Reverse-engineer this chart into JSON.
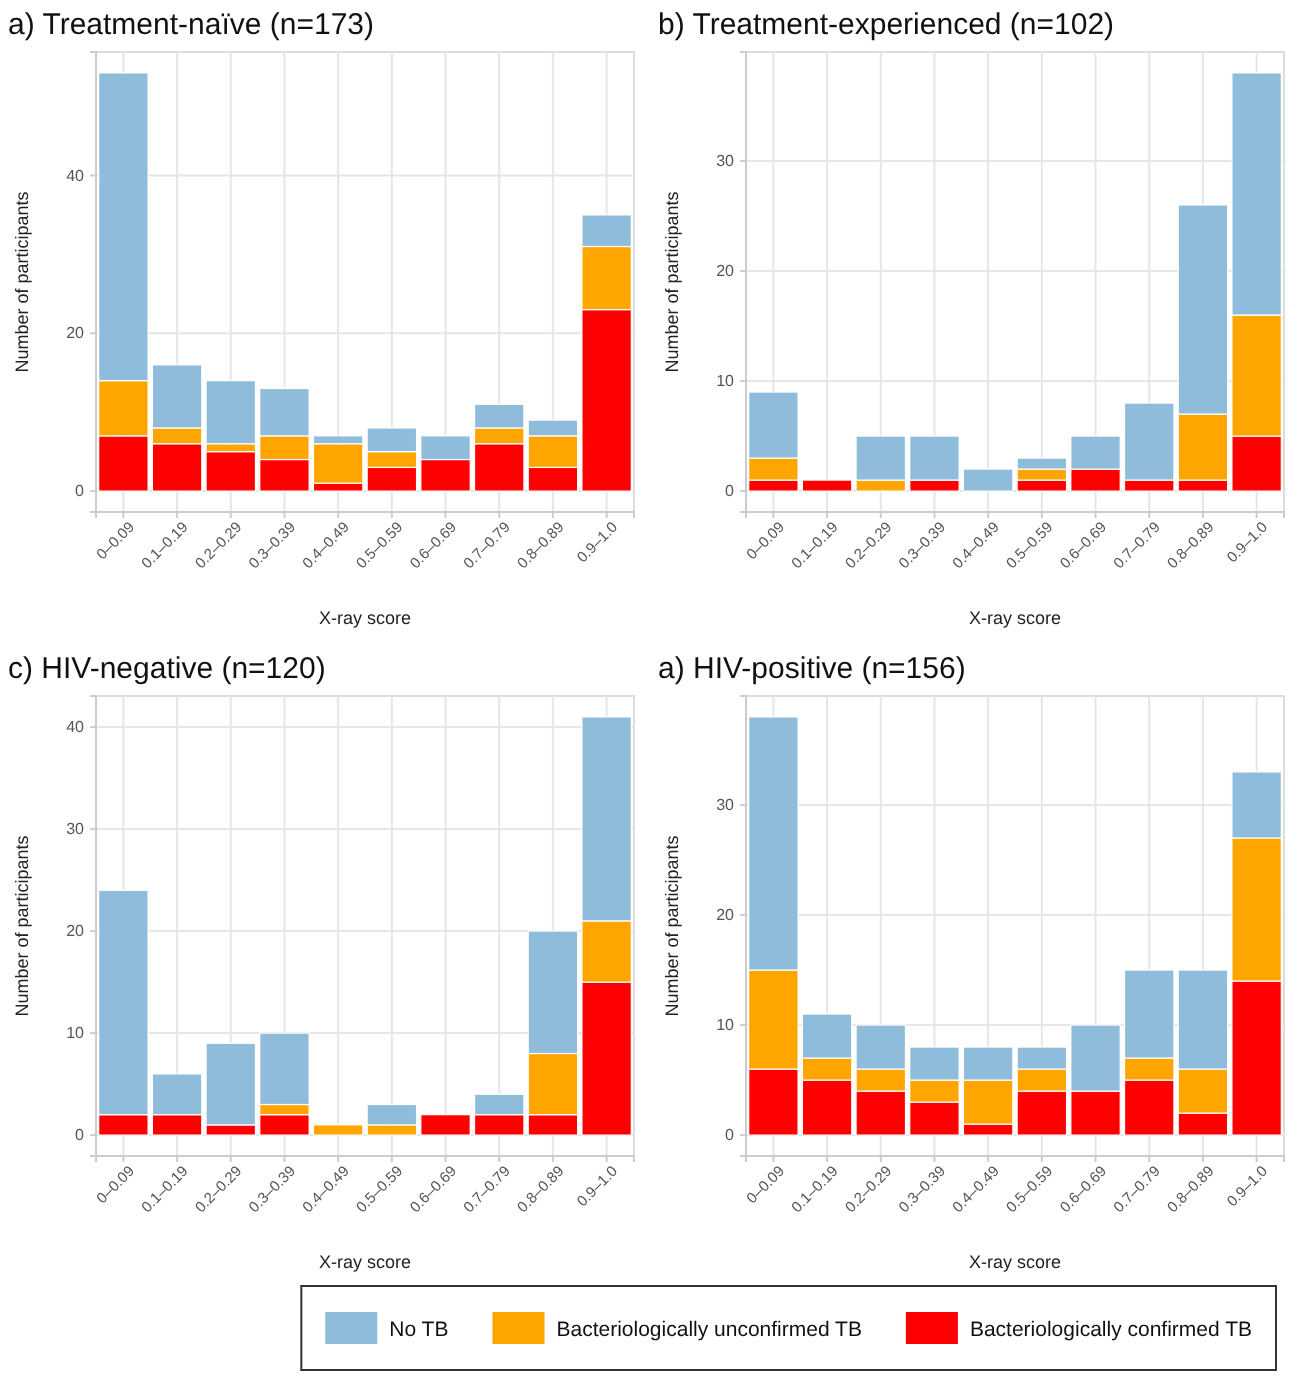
{
  "chart_data": [
    {
      "type": "bar",
      "title": "a) Treatment-naïve (n=173)",
      "xlabel": "X-ray score",
      "ylabel": "Number of participants",
      "stacked": true,
      "grid": true,
      "categories": [
        "0–0.09",
        "0.1–0.19",
        "0.2–0.29",
        "0.3–0.39",
        "0.4–0.49",
        "0.5–0.59",
        "0.6–0.69",
        "0.7–0.79",
        "0.8–0.89",
        "0.9–1.0"
      ],
      "ylim": [
        -2.65,
        55.65
      ],
      "yticks": [
        0,
        20,
        40
      ],
      "series": [
        {
          "color": "#ff0000",
          "values": [
            7,
            6,
            5,
            4,
            1,
            3,
            4,
            6,
            3,
            23
          ]
        },
        {
          "color": "#ffa500",
          "values": [
            7,
            2,
            1,
            3,
            5,
            2,
            0,
            2,
            4,
            8
          ]
        },
        {
          "color": "#8fbcdb",
          "values": [
            39,
            8,
            8,
            6,
            1,
            3,
            3,
            3,
            2,
            4
          ]
        }
      ]
    },
    {
      "type": "bar",
      "title": "b) Treatment-experienced (n=102)",
      "xlabel": "X-ray score",
      "ylabel": "Number of participants",
      "stacked": true,
      "grid": true,
      "categories": [
        "0–0.09",
        "0.1–0.19",
        "0.2–0.29",
        "0.3–0.39",
        "0.4–0.49",
        "0.5–0.59",
        "0.6–0.69",
        "0.7–0.79",
        "0.8–0.89",
        "0.9–1.0"
      ],
      "ylim": [
        -1.9,
        39.9
      ],
      "yticks": [
        0,
        10,
        20,
        30
      ],
      "series": [
        {
          "color": "#ff0000",
          "values": [
            1,
            1,
            0,
            1,
            0,
            1,
            2,
            1,
            1,
            5
          ]
        },
        {
          "color": "#ffa500",
          "values": [
            2,
            0,
            1,
            0,
            0,
            1,
            0,
            0,
            6,
            11
          ]
        },
        {
          "color": "#8fbcdb",
          "values": [
            6,
            0,
            4,
            4,
            2,
            1,
            3,
            7,
            19,
            22
          ]
        }
      ]
    },
    {
      "type": "bar",
      "title": "c) HIV-negative (n=120)",
      "xlabel": "X-ray score",
      "ylabel": "Number of participants",
      "stacked": true,
      "grid": true,
      "categories": [
        "0–0.09",
        "0.1–0.19",
        "0.2–0.29",
        "0.3–0.39",
        "0.4–0.49",
        "0.5–0.59",
        "0.6–0.69",
        "0.7–0.79",
        "0.8–0.89",
        "0.9–1.0"
      ],
      "ylim": [
        -2.05,
        43.05
      ],
      "yticks": [
        0,
        10,
        20,
        30,
        40
      ],
      "series": [
        {
          "color": "#ff0000",
          "values": [
            2,
            2,
            1,
            2,
            0,
            0,
            2,
            2,
            2,
            15
          ]
        },
        {
          "color": "#ffa500",
          "values": [
            0,
            0,
            0,
            1,
            1,
            1,
            0,
            0,
            6,
            6
          ]
        },
        {
          "color": "#8fbcdb",
          "values": [
            22,
            4,
            8,
            7,
            0,
            2,
            0,
            2,
            12,
            20
          ]
        }
      ]
    },
    {
      "type": "bar",
      "title": "a) HIV-positive (n=156)",
      "xlabel": "X-ray score",
      "ylabel": "Number of participants",
      "stacked": true,
      "grid": true,
      "legend": "bottom",
      "categories": [
        "0–0.09",
        "0.1–0.19",
        "0.2–0.29",
        "0.3–0.39",
        "0.4–0.49",
        "0.5–0.59",
        "0.6–0.69",
        "0.7–0.79",
        "0.8–0.89",
        "0.9–1.0"
      ],
      "ylim": [
        -1.9,
        39.9
      ],
      "yticks": [
        0,
        10,
        20,
        30
      ],
      "series": [
        {
          "name": "Bacteriologically confirmed TB",
          "color": "#ff0000",
          "values": [
            6,
            5,
            4,
            3,
            1,
            4,
            4,
            5,
            2,
            14
          ]
        },
        {
          "name": "Bacteriologically unconfirmed TB",
          "color": "#ffa500",
          "values": [
            9,
            2,
            2,
            2,
            4,
            2,
            0,
            2,
            4,
            13
          ]
        },
        {
          "name": "No TB",
          "color": "#8fbcdb",
          "values": [
            23,
            4,
            4,
            3,
            3,
            2,
            6,
            8,
            9,
            6
          ]
        }
      ]
    }
  ]
}
